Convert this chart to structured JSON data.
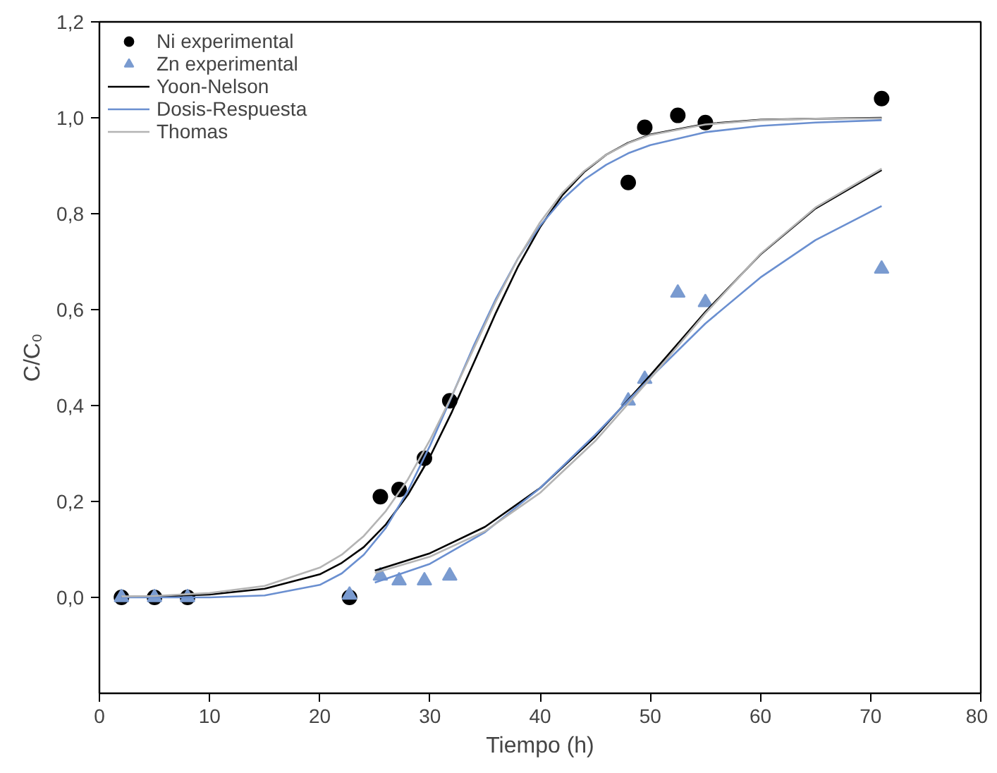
{
  "chart_data": {
    "type": "scatter",
    "xlabel": "Tiempo (h)",
    "ylabel": "C/C₀",
    "xlim": [
      0,
      80
    ],
    "xticks": [
      0,
      10,
      20,
      30,
      40,
      50,
      60,
      70,
      80
    ],
    "ylim": [
      -0.2,
      1.2
    ],
    "yticks": [
      {
        "value": 0,
        "label": "0,0"
      },
      {
        "value": 0.2,
        "label": "0,2"
      },
      {
        "value": 0.4,
        "label": "0,4"
      },
      {
        "value": 0.6,
        "label": "0,6"
      },
      {
        "value": 0.8,
        "label": "0,8"
      },
      {
        "value": 1.0,
        "label": "1,0"
      },
      {
        "value": 1.2,
        "label": "1,2"
      }
    ],
    "grid": false,
    "legend": "top left",
    "series": [
      {
        "name": "Ni experimental",
        "marker": "circle",
        "color": "#000000",
        "x": [
          2,
          5,
          8,
          22.7,
          25.5,
          27.2,
          29.5,
          31.8,
          48,
          49.5,
          52.5,
          55,
          71
        ],
        "values": [
          0,
          0,
          0,
          0,
          0.21,
          0.225,
          0.29,
          0.41,
          0.865,
          0.98,
          1.005,
          0.99,
          1.04
        ]
      },
      {
        "name": "Zn experimental",
        "marker": "triangle",
        "color": "#7a9bd0",
        "x": [
          2,
          5,
          8,
          22.7,
          25.5,
          27.2,
          29.5,
          31.8,
          48,
          49.5,
          52.5,
          55,
          71
        ],
        "values": [
          0,
          0,
          0,
          0.005,
          0.045,
          0.035,
          0.035,
          0.045,
          0.41,
          0.455,
          0.635,
          0.615,
          0.685
        ]
      },
      {
        "name": "Yoon-Nelson",
        "type": "line",
        "color": "#000000",
        "x": [
          2,
          5,
          10,
          15,
          20,
          22,
          24,
          26,
          28,
          30,
          32,
          34,
          36,
          38,
          40,
          42,
          44,
          46,
          48,
          50,
          55,
          60,
          65,
          71
        ],
        "values": [
          0.001,
          0.002,
          0.006,
          0.018,
          0.048,
          0.072,
          0.105,
          0.152,
          0.214,
          0.293,
          0.387,
          0.49,
          0.594,
          0.69,
          0.772,
          0.838,
          0.887,
          0.923,
          0.948,
          0.965,
          0.987,
          0.996,
          0.998,
          1.0
        ]
      },
      {
        "name": "Dosis-Respuesta",
        "type": "line",
        "color": "#6a8fd0",
        "x": [
          2,
          5,
          10,
          15,
          20,
          22,
          24,
          26,
          28,
          30,
          32,
          34,
          36,
          38,
          40,
          42,
          44,
          46,
          48,
          50,
          55,
          60,
          65,
          71
        ],
        "values": [
          0,
          0,
          0,
          0.004,
          0.026,
          0.05,
          0.089,
          0.145,
          0.222,
          0.316,
          0.42,
          0.526,
          0.623,
          0.707,
          0.775,
          0.829,
          0.871,
          0.902,
          0.926,
          0.943,
          0.97,
          0.983,
          0.99,
          0.995
        ]
      },
      {
        "name": "Thomas",
        "type": "line",
        "color": "#b4b4b4",
        "x": [
          2,
          5,
          10,
          15,
          20,
          22,
          24,
          26,
          28,
          30,
          32,
          34,
          36,
          38,
          40,
          42,
          44,
          46,
          48,
          50,
          55,
          60,
          65,
          71
        ],
        "values": [
          0.002,
          0.003,
          0.009,
          0.024,
          0.062,
          0.089,
          0.128,
          0.18,
          0.246,
          0.328,
          0.421,
          0.52,
          0.618,
          0.707,
          0.782,
          0.843,
          0.889,
          0.923,
          0.947,
          0.964,
          0.986,
          0.995,
          0.998,
          0.999
        ]
      },
      {
        "type": "line",
        "color": "#000000",
        "x": [
          25,
          30,
          35,
          40,
          45,
          50,
          55,
          60,
          65,
          71
        ],
        "values": [
          0.056,
          0.092,
          0.147,
          0.228,
          0.335,
          0.463,
          0.595,
          0.715,
          0.811,
          0.891
        ]
      },
      {
        "type": "line",
        "color": "#6a8fd0",
        "x": [
          25,
          30,
          35,
          40,
          45,
          50,
          55,
          60,
          65,
          71
        ],
        "values": [
          0.031,
          0.07,
          0.136,
          0.228,
          0.339,
          0.458,
          0.571,
          0.667,
          0.745,
          0.816
        ]
      },
      {
        "type": "line",
        "color": "#b4b4b4",
        "x": [
          25,
          30,
          35,
          40,
          45,
          50,
          55,
          60,
          65,
          71
        ],
        "values": [
          0.051,
          0.085,
          0.138,
          0.218,
          0.326,
          0.456,
          0.592,
          0.716,
          0.813,
          0.894
        ]
      }
    ]
  }
}
